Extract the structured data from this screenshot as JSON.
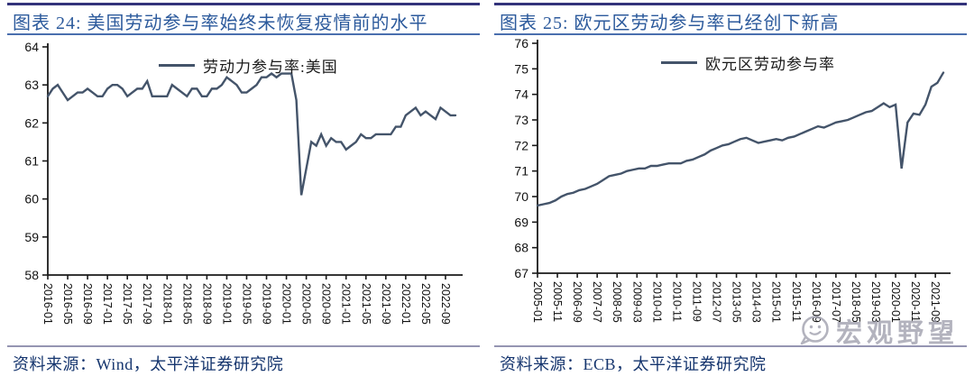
{
  "page": {
    "background": "#ffffff",
    "accent_color": "#2c5a9c",
    "line_color": "#44546A"
  },
  "watermark": {
    "text": "宏观野望",
    "icon": "chat-face-logo",
    "color": "#a3a3b0"
  },
  "panels": [
    {
      "id": "us",
      "title": "图表 24: 美国劳动参与率始终未恢复疫情前的水平",
      "legend_label": "劳动力参与率:美国",
      "source": "资料来源：Wind，太平洋证券研究院"
    },
    {
      "id": "euro",
      "title": "图表 25: 欧元区劳动参与率已经创下新高",
      "legend_label": "欧元区劳动参与率",
      "source": "资料来源：ECB，太平洋证券研究院"
    }
  ],
  "chart_data": [
    {
      "type": "line",
      "title": "图表 24: 美国劳动参与率始终未恢复疫情前的水平",
      "legend_position": "top",
      "grid": false,
      "ylim": [
        58,
        64
      ],
      "y_ticks": [
        58,
        59,
        60,
        61,
        62,
        63,
        64
      ],
      "x_start": "2016-01",
      "x_end": "2022-11",
      "x_frequency": "monthly",
      "x_months_per_point": 1,
      "x_months_per_tick": 4,
      "x_tick_labels": [
        "2016-01",
        "2016-05",
        "2016-09",
        "2017-01",
        "2017-05",
        "2017-09",
        "2018-01",
        "2018-05",
        "2018-09",
        "2019-01",
        "2019-05",
        "2019-09",
        "2020-01",
        "2020-05",
        "2020-09",
        "2021-01",
        "2021-05",
        "2021-09",
        "2022-01",
        "2022-05",
        "2022-09"
      ],
      "series": [
        {
          "name": "劳动力参与率:美国",
          "color": "#44546A",
          "values": [
            62.7,
            62.9,
            63.0,
            62.8,
            62.6,
            62.7,
            62.8,
            62.8,
            62.9,
            62.8,
            62.7,
            62.7,
            62.9,
            63.0,
            63.0,
            62.9,
            62.7,
            62.8,
            62.9,
            62.9,
            63.1,
            62.7,
            62.7,
            62.7,
            62.7,
            63.0,
            62.9,
            62.8,
            62.7,
            62.9,
            62.9,
            62.7,
            62.7,
            62.9,
            62.9,
            63.0,
            63.2,
            63.1,
            63.0,
            62.8,
            62.8,
            62.9,
            63.0,
            63.2,
            63.2,
            63.3,
            63.2,
            63.3,
            63.3,
            63.3,
            62.6,
            60.1,
            60.8,
            61.5,
            61.4,
            61.7,
            61.4,
            61.6,
            61.5,
            61.5,
            61.3,
            61.4,
            61.5,
            61.7,
            61.6,
            61.6,
            61.7,
            61.7,
            61.7,
            61.7,
            61.9,
            61.9,
            62.2,
            62.3,
            62.4,
            62.2,
            62.3,
            62.2,
            62.1,
            62.4,
            62.3,
            62.2,
            62.2
          ]
        }
      ]
    },
    {
      "type": "line",
      "title": "图表 25: 欧元区劳动参与率已经创下新高",
      "legend_position": "top",
      "grid": false,
      "ylim": [
        67,
        76
      ],
      "y_ticks": [
        67,
        68,
        69,
        70,
        71,
        72,
        73,
        74,
        75,
        76
      ],
      "x_start": "2005-01",
      "x_end": "2022-01",
      "x_frequency": "quarterly",
      "x_months_per_point": 3,
      "x_months_per_tick": 10,
      "x_tick_labels": [
        "2005-01",
        "2005-11",
        "2006-09",
        "2007-07",
        "2008-05",
        "2009-03",
        "2010-01",
        "2010-11",
        "2011-09",
        "2012-07",
        "2013-05",
        "2014-03",
        "2015-01",
        "2015-11",
        "2016-09",
        "2017-07",
        "2018-05",
        "2019-03",
        "2020-01",
        "2020-11",
        "2021-09"
      ],
      "series": [
        {
          "name": "欧元区劳动参与率",
          "color": "#44546A",
          "values": [
            69.65,
            69.7,
            69.75,
            69.85,
            70.0,
            70.1,
            70.15,
            70.25,
            70.3,
            70.4,
            70.5,
            70.65,
            70.8,
            70.85,
            70.9,
            71.0,
            71.05,
            71.1,
            71.1,
            71.2,
            71.2,
            71.25,
            71.3,
            71.3,
            71.3,
            71.4,
            71.45,
            71.55,
            71.65,
            71.8,
            71.9,
            72.0,
            72.05,
            72.15,
            72.25,
            72.3,
            72.2,
            72.1,
            72.15,
            72.2,
            72.25,
            72.2,
            72.3,
            72.35,
            72.45,
            72.55,
            72.65,
            72.75,
            72.7,
            72.8,
            72.9,
            72.95,
            73.0,
            73.1,
            73.2,
            73.3,
            73.35,
            73.5,
            73.65,
            73.5,
            73.6,
            71.1,
            72.9,
            73.25,
            73.2,
            73.6,
            74.3,
            74.45,
            74.85
          ]
        }
      ]
    }
  ]
}
